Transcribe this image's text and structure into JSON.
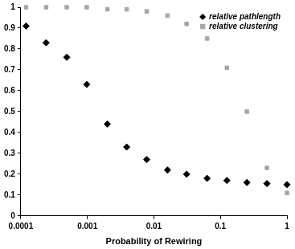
{
  "chart_data": {
    "type": "scatter",
    "x_label": "Probability of Rewiring",
    "x": [
      0.00012,
      0.00024,
      0.00049,
      0.00098,
      0.002,
      0.0039,
      0.0078,
      0.016,
      0.031,
      0.063,
      0.125,
      0.25,
      0.5,
      1
    ],
    "series": [
      {
        "name": "relative pathlength",
        "color": "#000000",
        "marker": "diamond",
        "values": [
          0.91,
          0.83,
          0.76,
          0.63,
          0.44,
          0.33,
          0.27,
          0.22,
          0.2,
          0.18,
          0.17,
          0.16,
          0.155,
          0.15
        ]
      },
      {
        "name": "relative clustering",
        "color": "#a6a6a6",
        "marker": "square",
        "values": [
          1,
          1,
          1,
          1,
          0.99,
          0.99,
          0.98,
          0.96,
          0.92,
          0.85,
          0.71,
          0.5,
          0.23,
          0.11
        ]
      }
    ],
    "xlim": [
      0.0001,
      1
    ],
    "xticks": [
      0.0001,
      0.001,
      0.01,
      0.1,
      1
    ],
    "ylim": [
      0,
      1
    ],
    "yticks": [
      0,
      0.1,
      0.2,
      0.3,
      0.4,
      0.5,
      0.6,
      0.7,
      0.8,
      0.9,
      1
    ],
    "log": "x",
    "grid": false,
    "legend": "upper right"
  }
}
